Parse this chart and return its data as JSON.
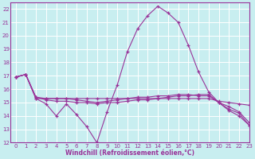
{
  "xlabel": "Windchill (Refroidissement éolien,°C)",
  "background_color": "#c8eef0",
  "line_color": "#993399",
  "grid_color": "#ffffff",
  "xlim": [
    -0.5,
    23
  ],
  "ylim": [
    12,
    22.5
  ],
  "yticks": [
    12,
    13,
    14,
    15,
    16,
    17,
    18,
    19,
    20,
    21,
    22
  ],
  "xticks": [
    0,
    1,
    2,
    3,
    4,
    5,
    6,
    7,
    8,
    9,
    10,
    11,
    12,
    13,
    14,
    15,
    16,
    17,
    18,
    19,
    20,
    21,
    22,
    23
  ],
  "line1_x": [
    0,
    1,
    2,
    3,
    4,
    5,
    6,
    7,
    8,
    9,
    10,
    11,
    12,
    13,
    14,
    15,
    16,
    17,
    18,
    19,
    20,
    21,
    22,
    23
  ],
  "line1_y": [
    16.9,
    17.1,
    15.3,
    14.9,
    14.0,
    14.9,
    14.1,
    13.2,
    12.0,
    14.3,
    16.3,
    18.8,
    20.5,
    21.5,
    22.2,
    21.7,
    21.0,
    19.3,
    17.3,
    15.8,
    15.0,
    14.4,
    14.0,
    13.3
  ],
  "line2_x": [
    0,
    1,
    2,
    3,
    4,
    5,
    6,
    7,
    8,
    9,
    10,
    11,
    12,
    13,
    14,
    15,
    16,
    17,
    18,
    19,
    20,
    21,
    22,
    23
  ],
  "line2_y": [
    16.9,
    17.1,
    15.3,
    15.3,
    15.3,
    15.3,
    15.3,
    15.3,
    15.3,
    15.3,
    15.3,
    15.3,
    15.3,
    15.3,
    15.3,
    15.3,
    15.3,
    15.3,
    15.3,
    15.3,
    15.1,
    15.0,
    14.9,
    14.8
  ],
  "line3_x": [
    0,
    1,
    2,
    3,
    4,
    5,
    6,
    7,
    8,
    9,
    10,
    11,
    12,
    13,
    14,
    15,
    16,
    17,
    18,
    19,
    20,
    21,
    22,
    23
  ],
  "line3_y": [
    16.9,
    17.1,
    15.4,
    15.2,
    15.1,
    15.1,
    15.0,
    15.0,
    14.9,
    15.0,
    15.0,
    15.1,
    15.2,
    15.2,
    15.3,
    15.4,
    15.5,
    15.5,
    15.6,
    15.6,
    15.0,
    14.5,
    14.2,
    13.3
  ],
  "line4_x": [
    0,
    1,
    2,
    3,
    4,
    5,
    6,
    7,
    8,
    9,
    10,
    11,
    12,
    13,
    14,
    15,
    16,
    17,
    18,
    19,
    20,
    21,
    22,
    23
  ],
  "line4_y": [
    16.9,
    17.1,
    15.4,
    15.3,
    15.3,
    15.3,
    15.2,
    15.1,
    15.0,
    15.1,
    15.2,
    15.3,
    15.4,
    15.4,
    15.5,
    15.5,
    15.6,
    15.6,
    15.5,
    15.5,
    15.0,
    14.7,
    14.3,
    13.5
  ]
}
